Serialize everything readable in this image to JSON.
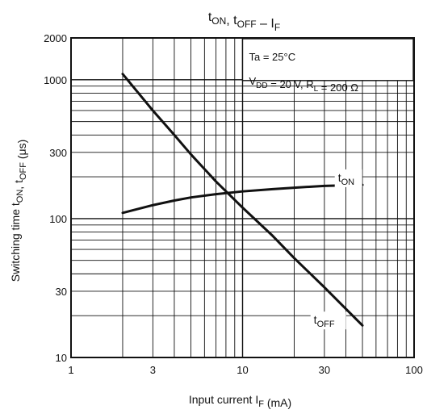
{
  "chart_data": {
    "type": "line",
    "title": {
      "parts": [
        {
          "t": "t",
          "sub": "ON"
        },
        {
          "t": ", t",
          "sub": "OFF"
        },
        {
          "t": " – I",
          "sub": "F"
        }
      ]
    },
    "xlabel": {
      "parts": [
        {
          "t": "Input current   I",
          "sub": "F"
        },
        {
          "t": "   (mA)",
          "sub": ""
        }
      ]
    },
    "ylabel": {
      "parts": [
        {
          "t": "Switching time   t",
          "sub": "ON"
        },
        {
          "t": ", t",
          "sub": "OFF"
        },
        {
          "t": "   (μs)",
          "sub": ""
        }
      ]
    },
    "x_scale": "log",
    "y_scale": "log",
    "xlim": [
      1,
      100
    ],
    "ylim": [
      10,
      2000
    ],
    "x_tick_labels": [
      "1",
      "3",
      "10",
      "30",
      "100"
    ],
    "x_tick_values": [
      1,
      3,
      10,
      30,
      100
    ],
    "y_tick_labels": [
      "10",
      "30",
      "100",
      "300",
      "1000",
      "2000"
    ],
    "y_tick_values": [
      10,
      30,
      100,
      300,
      1000,
      2000
    ],
    "grid": true,
    "annotation": {
      "line1": "Ta = 25°C",
      "line2_parts": [
        {
          "t": "V",
          "sub": "DD"
        },
        {
          "t": " = 20 V, R",
          "sub": "L"
        },
        {
          "t": " = 200 Ω",
          "sub": ""
        }
      ]
    },
    "series": [
      {
        "name": "tON",
        "label_parts": [
          {
            "t": "t",
            "sub": "ON"
          }
        ],
        "label_at": [
          36,
          185
        ],
        "x": [
          2,
          3,
          4,
          5,
          7,
          10,
          15,
          20,
          30,
          50
        ],
        "y": [
          110,
          125,
          135,
          142,
          150,
          157,
          163,
          167,
          172,
          175
        ]
      },
      {
        "name": "tOFF",
        "label_parts": [
          {
            "t": "t",
            "sub": "OFF"
          }
        ],
        "label_at": [
          26,
          17.5
        ],
        "x": [
          2,
          3,
          4,
          5,
          7,
          10,
          15,
          20,
          30,
          50
        ],
        "y": [
          1100,
          600,
          400,
          290,
          185,
          120,
          75,
          52,
          32,
          17
        ]
      }
    ]
  }
}
